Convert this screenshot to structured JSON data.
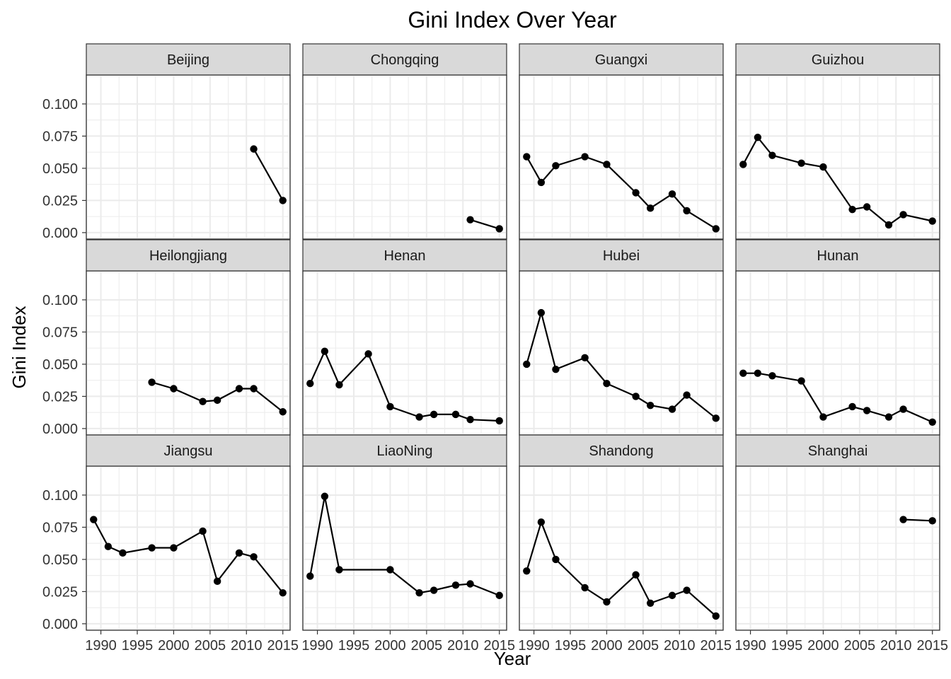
{
  "chart_data": {
    "type": "line",
    "title": "Gini Index Over Year",
    "xlabel": "Year",
    "ylabel": "Gini Index",
    "xlim": [
      1988,
      2016
    ],
    "ylim": [
      0,
      0.1
    ],
    "x_ticks": [
      1990,
      1995,
      2000,
      2005,
      2010,
      2015
    ],
    "x_tick_labels": [
      "1990",
      "1995",
      "2000",
      "2005",
      "2010",
      "2015"
    ],
    "y_ticks": [
      0,
      0.025,
      0.05,
      0.075,
      0.1
    ],
    "y_tick_labels": [
      "0.000",
      "0.025",
      "0.050",
      "0.075",
      "0.100"
    ],
    "grid": true,
    "layout": "facet grid 3 rows x 4 columns",
    "series_color": "#000000",
    "panels": [
      {
        "name": "Beijing",
        "x": [
          2011,
          2015
        ],
        "y": [
          0.065,
          0.025
        ]
      },
      {
        "name": "Chongqing",
        "x": [
          2011,
          2015
        ],
        "y": [
          0.01,
          0.003
        ]
      },
      {
        "name": "Guangxi",
        "x": [
          1989,
          1991,
          1993,
          1997,
          2000,
          2004,
          2006,
          2009,
          2011,
          2015
        ],
        "y": [
          0.059,
          0.039,
          0.052,
          0.059,
          0.053,
          0.031,
          0.019,
          0.03,
          0.017,
          0.003
        ]
      },
      {
        "name": "Guizhou",
        "x": [
          1989,
          1991,
          1993,
          1997,
          2000,
          2004,
          2006,
          2009,
          2011,
          2015
        ],
        "y": [
          0.053,
          0.074,
          0.06,
          0.054,
          0.051,
          0.018,
          0.02,
          0.006,
          0.014,
          0.009
        ]
      },
      {
        "name": "Heilongjiang",
        "x": [
          1997,
          2000,
          2004,
          2006,
          2009,
          2011,
          2015
        ],
        "y": [
          0.036,
          0.031,
          0.021,
          0.022,
          0.031,
          0.031,
          0.013
        ]
      },
      {
        "name": "Henan",
        "x": [
          1989,
          1991,
          1993,
          1997,
          2000,
          2004,
          2006,
          2009,
          2011,
          2015
        ],
        "y": [
          0.035,
          0.06,
          0.034,
          0.058,
          0.017,
          0.009,
          0.011,
          0.011,
          0.007,
          0.006
        ]
      },
      {
        "name": "Hubei",
        "x": [
          1989,
          1991,
          1993,
          1997,
          2000,
          2004,
          2006,
          2009,
          2011,
          2015
        ],
        "y": [
          0.05,
          0.09,
          0.046,
          0.055,
          0.035,
          0.025,
          0.018,
          0.015,
          0.026,
          0.008
        ]
      },
      {
        "name": "Hunan",
        "x": [
          1989,
          1991,
          1993,
          1997,
          2000,
          2004,
          2006,
          2009,
          2011,
          2015
        ],
        "y": [
          0.043,
          0.043,
          0.041,
          0.037,
          0.009,
          0.017,
          0.014,
          0.009,
          0.015,
          0.005
        ]
      },
      {
        "name": "Jiangsu",
        "x": [
          1989,
          1991,
          1993,
          1997,
          2000,
          2004,
          2006,
          2009,
          2011,
          2015
        ],
        "y": [
          0.081,
          0.06,
          0.055,
          0.059,
          0.059,
          0.072,
          0.033,
          0.055,
          0.052,
          0.024
        ]
      },
      {
        "name": "LiaoNing",
        "x": [
          1989,
          1991,
          1993,
          2000,
          2004,
          2006,
          2009,
          2011,
          2015
        ],
        "y": [
          0.037,
          0.099,
          0.042,
          0.042,
          0.024,
          0.026,
          0.03,
          0.031,
          0.022
        ]
      },
      {
        "name": "Shandong",
        "x": [
          1989,
          1991,
          1993,
          1997,
          2000,
          2004,
          2006,
          2009,
          2011,
          2015
        ],
        "y": [
          0.041,
          0.079,
          0.05,
          0.028,
          0.017,
          0.038,
          0.016,
          0.022,
          0.026,
          0.006
        ]
      },
      {
        "name": "Shanghai",
        "x": [
          2011,
          2015
        ],
        "y": [
          0.081,
          0.08
        ]
      }
    ]
  }
}
